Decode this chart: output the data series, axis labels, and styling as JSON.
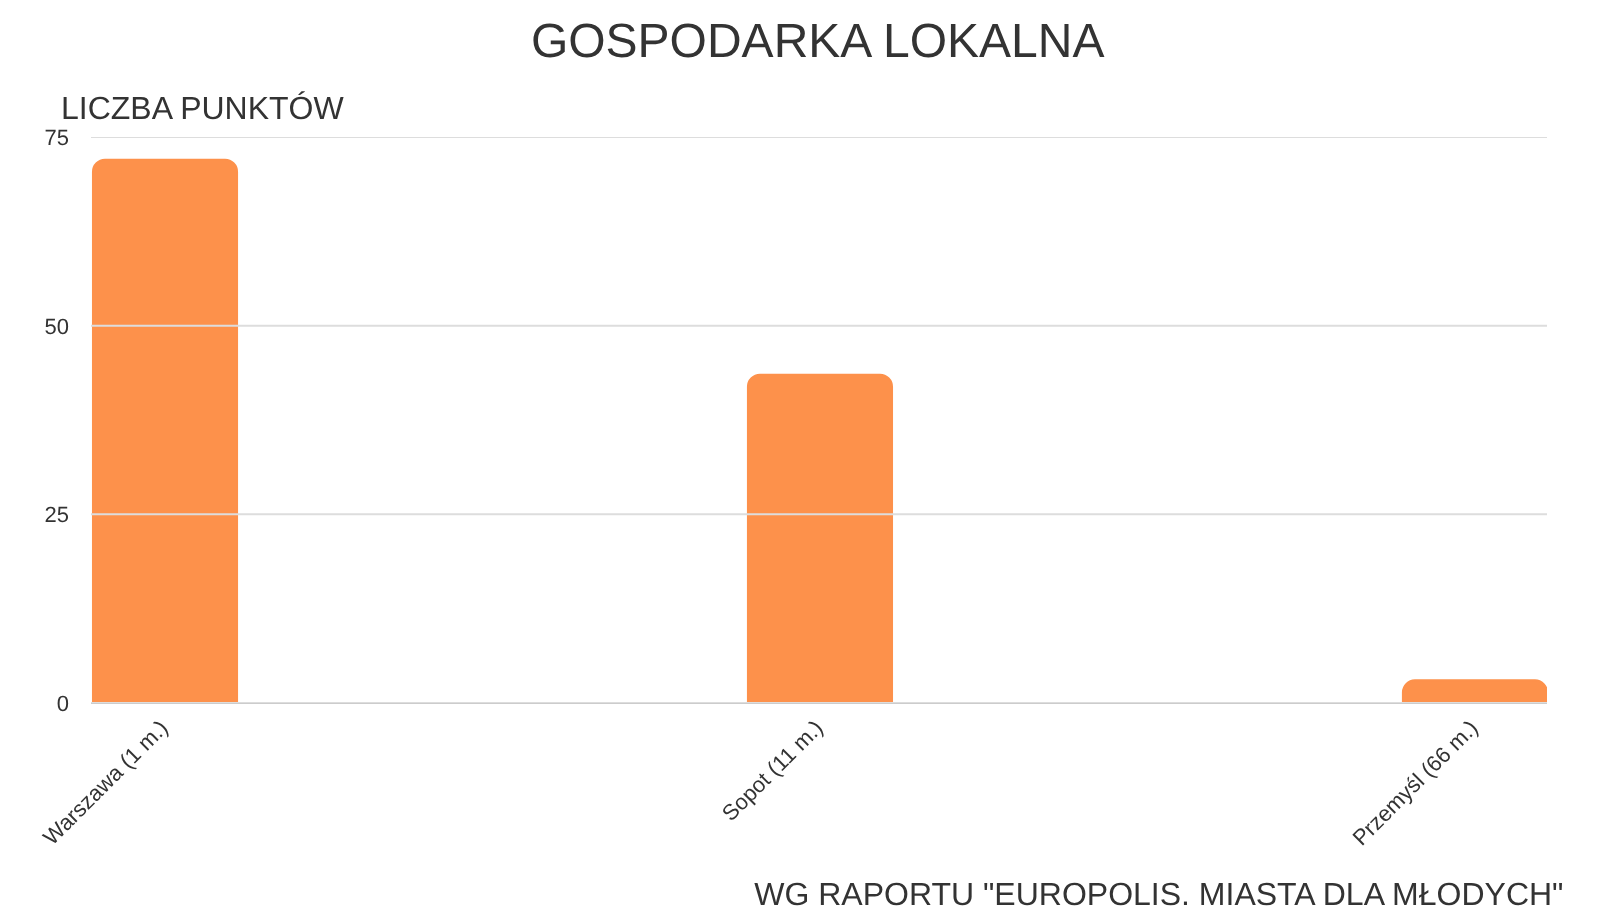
{
  "chart_data": {
    "type": "bar",
    "title": "GOSPODARKA LOKALNA",
    "ylabel": "LICZBA PUNKTÓW",
    "categories": [
      "Warszawa (1 m.)",
      "Sopot (11 m.)",
      "Przemyśl (66 m.)"
    ],
    "values": [
      72,
      43.5,
      3
    ],
    "color": "#fd914b",
    "ylim": [
      0,
      75
    ],
    "yticks": [
      0,
      25,
      50,
      75
    ],
    "grid": "y",
    "annotations": [
      "WG RAPORTU \"EUROPOLIS. MIASTA DLA MŁODYCH\""
    ]
  }
}
